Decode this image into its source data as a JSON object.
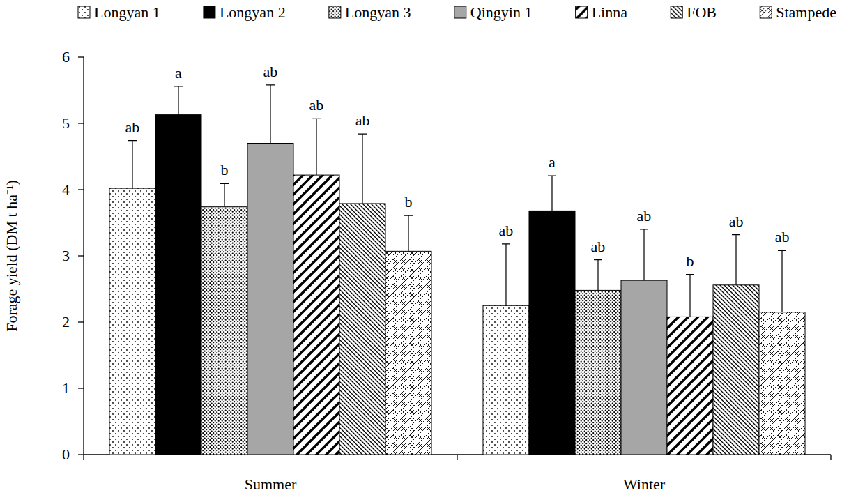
{
  "chart_data": {
    "type": "bar",
    "y_label": "Forage yield (DM t ha⁻¹)",
    "categories": [
      "Summer",
      "Winter"
    ],
    "ylim": [
      0,
      6
    ],
    "yticks": [
      0,
      1,
      2,
      3,
      4,
      5,
      6
    ],
    "grid": false,
    "legend": "top",
    "series": [
      {
        "name": "Longyan 1",
        "color": "#ffffff",
        "values": [
          4.02,
          2.25
        ],
        "errors": [
          0.72,
          0.93
        ],
        "letters": [
          "ab",
          "ab"
        ]
      },
      {
        "name": "Longyan 2",
        "color": "#000000",
        "values": [
          5.13,
          3.68
        ],
        "errors": [
          0.43,
          0.53
        ],
        "letters": [
          "a",
          "a"
        ]
      },
      {
        "name": "Longyan 3",
        "color": "#ffffff",
        "values": [
          3.74,
          2.48
        ],
        "errors": [
          0.35,
          0.46
        ],
        "letters": [
          "b",
          "ab"
        ]
      },
      {
        "name": "Qingyin 1",
        "color": "#a6a6a6",
        "values": [
          4.7,
          2.63
        ],
        "errors": [
          0.88,
          0.77
        ],
        "letters": [
          "ab",
          "ab"
        ]
      },
      {
        "name": "Linna",
        "color": "#ffffff",
        "values": [
          4.22,
          2.08
        ],
        "errors": [
          0.85,
          0.64
        ],
        "letters": [
          "ab",
          "b"
        ]
      },
      {
        "name": "FOB",
        "color": "#ffffff",
        "values": [
          3.79,
          2.56
        ],
        "errors": [
          1.05,
          0.76
        ],
        "letters": [
          "ab",
          "ab"
        ]
      },
      {
        "name": "Stampede",
        "color": "#ffffff",
        "values": [
          3.07,
          2.15
        ],
        "errors": [
          0.54,
          0.93
        ],
        "letters": [
          "b",
          "ab"
        ]
      }
    ]
  }
}
